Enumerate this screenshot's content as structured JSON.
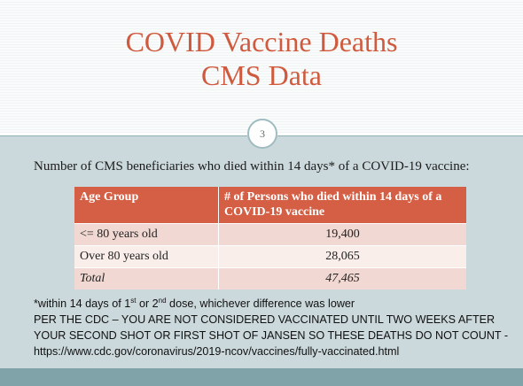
{
  "slide": {
    "title_line1": "COVID Vaccine Deaths",
    "title_line2": "CMS Data",
    "slide_number": "3",
    "subtitle": "Number of CMS beneficiaries who died within 14 days* of a COVID-19 vaccine:"
  },
  "table": {
    "headers": [
      "Age Group",
      "# of Persons who died within 14 days of a COVID-19 vaccine"
    ],
    "rows": [
      {
        "group": "<= 80 years old",
        "count": "19,400"
      },
      {
        "group": "Over 80 years old",
        "count": "28,065"
      },
      {
        "group": "Total",
        "count": "47,465"
      }
    ]
  },
  "notes": {
    "footnote_pre": "*within 14 days of 1",
    "footnote_sup1": "st",
    "footnote_mid": " or 2",
    "footnote_sup2": "nd",
    "footnote_post": " dose, whichever difference was lower",
    "line2": "PER THE CDC – YOU ARE NOT CONSIDERED VACCINATED UNTIL TWO WEEKS AFTER",
    "line3": "YOUR SECOND SHOT OR FIRST SHOT OF JANSEN SO THESE DEATHS DO NOT COUNT -",
    "line4": "https://www.cdc.gov/coronavirus/2019-ncov/vaccines/fully-vaccinated.html"
  },
  "colors": {
    "title": "#cf5a3e",
    "header_fill": "#d45f45",
    "row_fill_dark": "#f2d8d2",
    "row_fill_light": "#f9eeea",
    "lower_background": "#cbd8dc",
    "footer_bar": "#7fa3a8"
  }
}
